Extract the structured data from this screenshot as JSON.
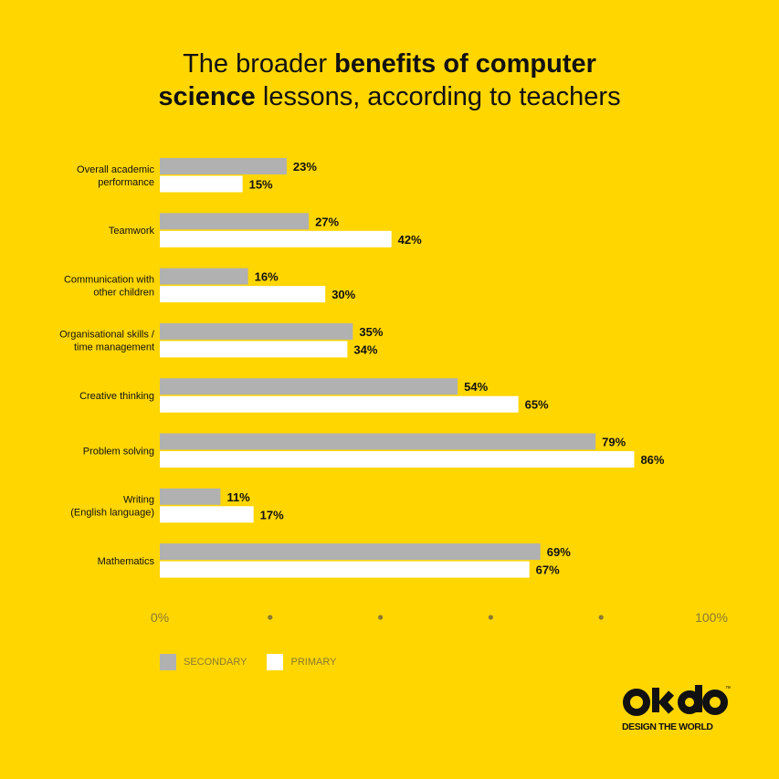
{
  "title": {
    "part1": "The broader ",
    "part2_bold": "benefits of computer",
    "part3_bold": "science",
    "part4": " lessons, according to teachers"
  },
  "colors": {
    "background": "#FFD600",
    "secondary": "#B1B1B1",
    "primary": "#FFFFFF",
    "text": "#111111"
  },
  "chart_data": {
    "type": "bar",
    "orientation": "horizontal",
    "categories": [
      [
        "Overall academic",
        "performance"
      ],
      [
        "Teamwork"
      ],
      [
        "Communication with",
        "other children"
      ],
      [
        "Organisational skills /",
        "time management"
      ],
      [
        "Creative thinking"
      ],
      [
        "Problem solving"
      ],
      [
        "Writing",
        "(English language)"
      ],
      [
        "Mathematics"
      ]
    ],
    "series": [
      {
        "name": "SECONDARY",
        "color": "#B1B1B1",
        "values": [
          23,
          27,
          16,
          35,
          54,
          79,
          11,
          69
        ]
      },
      {
        "name": "PRIMARY",
        "color": "#FFFFFF",
        "values": [
          15,
          42,
          30,
          34,
          65,
          86,
          17,
          67
        ]
      }
    ],
    "value_suffix": "%",
    "xlim": [
      0,
      100
    ],
    "x_tick_labels": {
      "start": "0%",
      "end": "100%"
    },
    "x_tick_dots": [
      20,
      40,
      60,
      80
    ],
    "legend_position": "bottom-left",
    "grid": false
  },
  "logo": {
    "wordmark": "okdo",
    "tagline": "DESIGN THE WORLD",
    "trademark": "™"
  }
}
